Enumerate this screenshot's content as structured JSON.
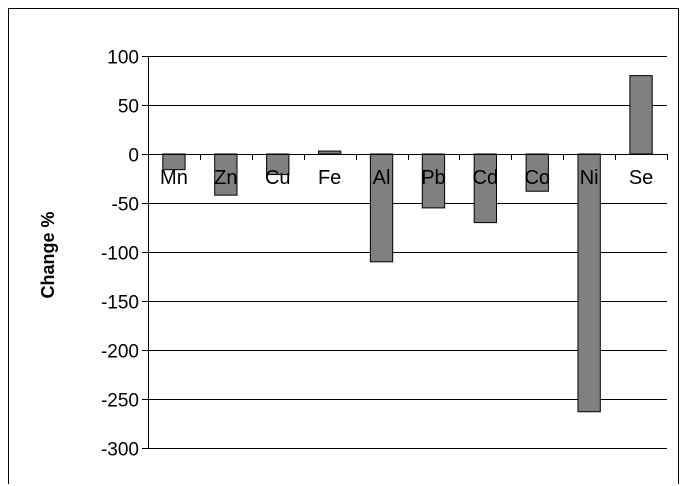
{
  "chart_data": {
    "type": "bar",
    "title": "",
    "xlabel": "",
    "ylabel": "Change %",
    "categories": [
      "Mn",
      "Zn",
      "Cu",
      "Fe",
      "Al",
      "Pb",
      "Cd",
      "Co",
      "Ni",
      "Se"
    ],
    "values": [
      -16,
      -42,
      -21,
      3,
      -110,
      -55,
      -70,
      -38,
      -263,
      80
    ],
    "ylim": [
      -300,
      100
    ],
    "yticks": [
      100,
      50,
      0,
      -50,
      -100,
      -150,
      -200,
      -250,
      -300
    ],
    "grid": true,
    "bar_color": "#808080",
    "gridline_color": "#000000"
  }
}
